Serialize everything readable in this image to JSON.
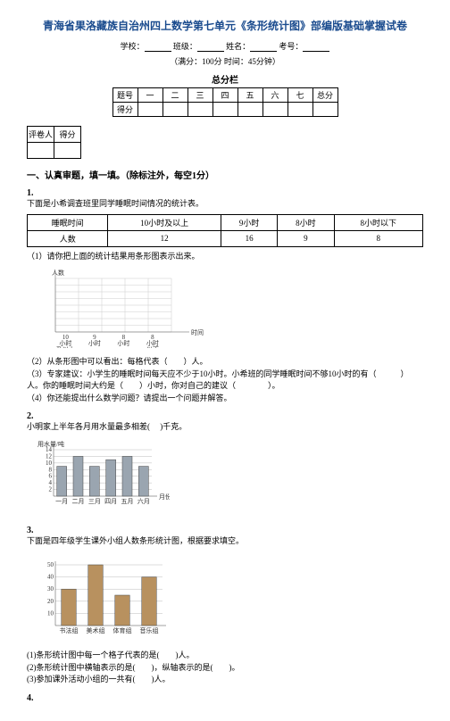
{
  "title": "青海省果洛藏族自治州四上数学第七单元《条形统计图》部编版基础掌握试卷",
  "meta": {
    "school_label": "学校：",
    "class_label": "班级：",
    "name_label": "姓名：",
    "exam_no_label": "考号：",
    "timing": "（满分：100分 时间：45分钟）"
  },
  "score_block": {
    "title": "总分栏",
    "row_id": "题号",
    "cols": [
      "一",
      "二",
      "三",
      "四",
      "五",
      "六",
      "七",
      "总分"
    ],
    "row_score": "得分"
  },
  "reviewer": {
    "c1": "评卷人",
    "c2": "得分"
  },
  "section1": "一、认真审题，填一填。（除标注外，每空1分）",
  "q1": {
    "num": "1.",
    "intro": "下面是小希调查班里同学睡眠时间情况的统计表。",
    "row1": [
      "睡眠时间",
      "10小时及以上",
      "9小时",
      "8小时",
      "8小时以下"
    ],
    "row2": [
      "人数",
      "12",
      "16",
      "9",
      "8"
    ],
    "p1": "（1）请你把上面的统计结果用条形图表示出来。",
    "y_label": "人数",
    "x_label": "时间",
    "x_ticks": [
      "10 小时 及以上",
      "9 小时",
      "8 小时",
      "8 小时 以下"
    ],
    "y_max": 16,
    "grid_color": "#ccc",
    "axis_color": "#555",
    "p2": "（2）从条形图中可以看出：每格代表（　　）人。",
    "p3": "（3）专家建议：小学生的睡眠时间每天应不少于10小时。小希班的同学睡眠时间不够10小时的有（　　　）人。你的睡眠时间大约是（　　）小时，你对自己的建议（　　　　）。",
    "p4": "（4）你还能提出什么数学问题？请提出一个问题并解答。"
  },
  "q2": {
    "num": "2.",
    "intro": "小明家上半年各月用水量最多相差(　  )千克。",
    "y_label": "用水量/吨",
    "x_label": "月份",
    "x_ticks": [
      "一月",
      "二月",
      "三月",
      "四月",
      "五月",
      "六月"
    ],
    "values": [
      9,
      12,
      9,
      11,
      12,
      9
    ],
    "y_ticks": [
      2,
      4,
      6,
      8,
      10,
      12,
      14
    ],
    "bar_color": "#9aa5b0",
    "border_color": "#444",
    "grid_color": "#bbb"
  },
  "q3": {
    "num": "3.",
    "intro": "下面是四年级学生课外小组人数条形统计图，根据要求填空。",
    "y_ticks": [
      10,
      20,
      30,
      40,
      50
    ],
    "x_ticks": [
      "书法组",
      "美术组",
      "体育组",
      "音乐组"
    ],
    "values": [
      30,
      50,
      25,
      40
    ],
    "bar_color": "#b8915f",
    "grid_color": "#bbb",
    "axis_color": "#444",
    "p1": "(1)条形统计图中每一个格子代表的是(　　)人。",
    "p2": "(2)条形统计图中横轴表示的是(　　)，纵轴表示的是(　　)。",
    "p3": "(3)参加课外活动小组的一共有(　　)人。"
  },
  "q4": {
    "num": "4."
  }
}
